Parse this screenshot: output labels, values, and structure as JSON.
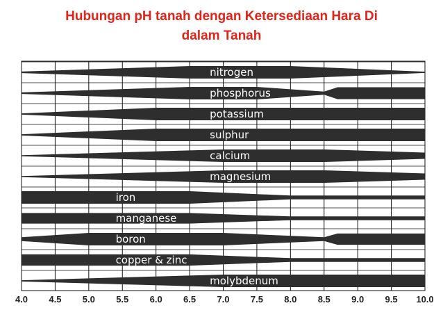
{
  "title_line1": "Hubungan pH tanah dengan Ketersediaan Hara Di",
  "title_line2": "dalam Tanah",
  "colors": {
    "title": "#e2231a",
    "band": "#2e2e2e",
    "grid": "#111111",
    "label": "#ffffff"
  },
  "chart_data": {
    "type": "area",
    "xlabel": "",
    "ylabel": "",
    "xlim": [
      4.0,
      10.0
    ],
    "x_ticks": [
      "4.0",
      "4.5",
      "5.0",
      "5.5",
      "6.0",
      "6.5",
      "7.0",
      "7.5",
      "8.0",
      "8.5",
      "9.0",
      "9.5",
      "10.0"
    ],
    "series": [
      {
        "name": "nitrogen",
        "label_x": 6.8,
        "profile": [
          [
            4.0,
            0.12
          ],
          [
            6.5,
            1.0
          ],
          [
            8.0,
            1.0
          ],
          [
            10.0,
            0.1
          ]
        ]
      },
      {
        "name": "phosphorus",
        "label_x": 6.8,
        "profile": [
          [
            4.0,
            0.12
          ],
          [
            6.5,
            1.0
          ],
          [
            7.5,
            1.0
          ],
          [
            8.5,
            0.25
          ],
          [
            8.7,
            0.95
          ],
          [
            10.0,
            0.95
          ]
        ]
      },
      {
        "name": "potassium",
        "label_x": 6.8,
        "profile": [
          [
            4.0,
            0.1
          ],
          [
            6.0,
            1.0
          ],
          [
            10.0,
            1.0
          ]
        ]
      },
      {
        "name": "sulphur",
        "label_x": 6.8,
        "profile": [
          [
            4.0,
            0.1
          ],
          [
            6.0,
            1.0
          ],
          [
            10.0,
            1.0
          ]
        ]
      },
      {
        "name": "calcium",
        "label_x": 6.8,
        "profile": [
          [
            4.0,
            0.08
          ],
          [
            7.0,
            1.0
          ],
          [
            8.5,
            1.0
          ],
          [
            10.0,
            0.5
          ]
        ]
      },
      {
        "name": "magnesium",
        "label_x": 6.8,
        "profile": [
          [
            4.0,
            0.08
          ],
          [
            7.0,
            1.0
          ],
          [
            8.5,
            1.0
          ],
          [
            10.0,
            0.5
          ]
        ]
      },
      {
        "name": "iron",
        "label_x": 5.4,
        "profile": [
          [
            4.0,
            1.0
          ],
          [
            6.5,
            1.0
          ],
          [
            8.0,
            0.3
          ],
          [
            10.0,
            0.3
          ]
        ]
      },
      {
        "name": "manganese",
        "label_x": 5.4,
        "profile": [
          [
            4.0,
            0.85
          ],
          [
            6.5,
            0.85
          ],
          [
            8.0,
            0.3
          ],
          [
            10.0,
            0.3
          ]
        ]
      },
      {
        "name": "boron",
        "label_x": 5.4,
        "profile": [
          [
            4.0,
            0.3
          ],
          [
            5.0,
            1.0
          ],
          [
            7.0,
            1.0
          ],
          [
            8.5,
            0.3
          ],
          [
            8.7,
            0.9
          ],
          [
            10.0,
            0.9
          ]
        ]
      },
      {
        "name": "copper & zinc",
        "label_x": 5.4,
        "profile": [
          [
            4.0,
            0.9
          ],
          [
            6.5,
            0.9
          ],
          [
            8.0,
            0.3
          ],
          [
            10.0,
            0.3
          ]
        ]
      },
      {
        "name": "molybdenum",
        "label_x": 6.8,
        "profile": [
          [
            4.0,
            0.1
          ],
          [
            7.0,
            1.0
          ],
          [
            10.0,
            1.0
          ]
        ]
      }
    ]
  }
}
